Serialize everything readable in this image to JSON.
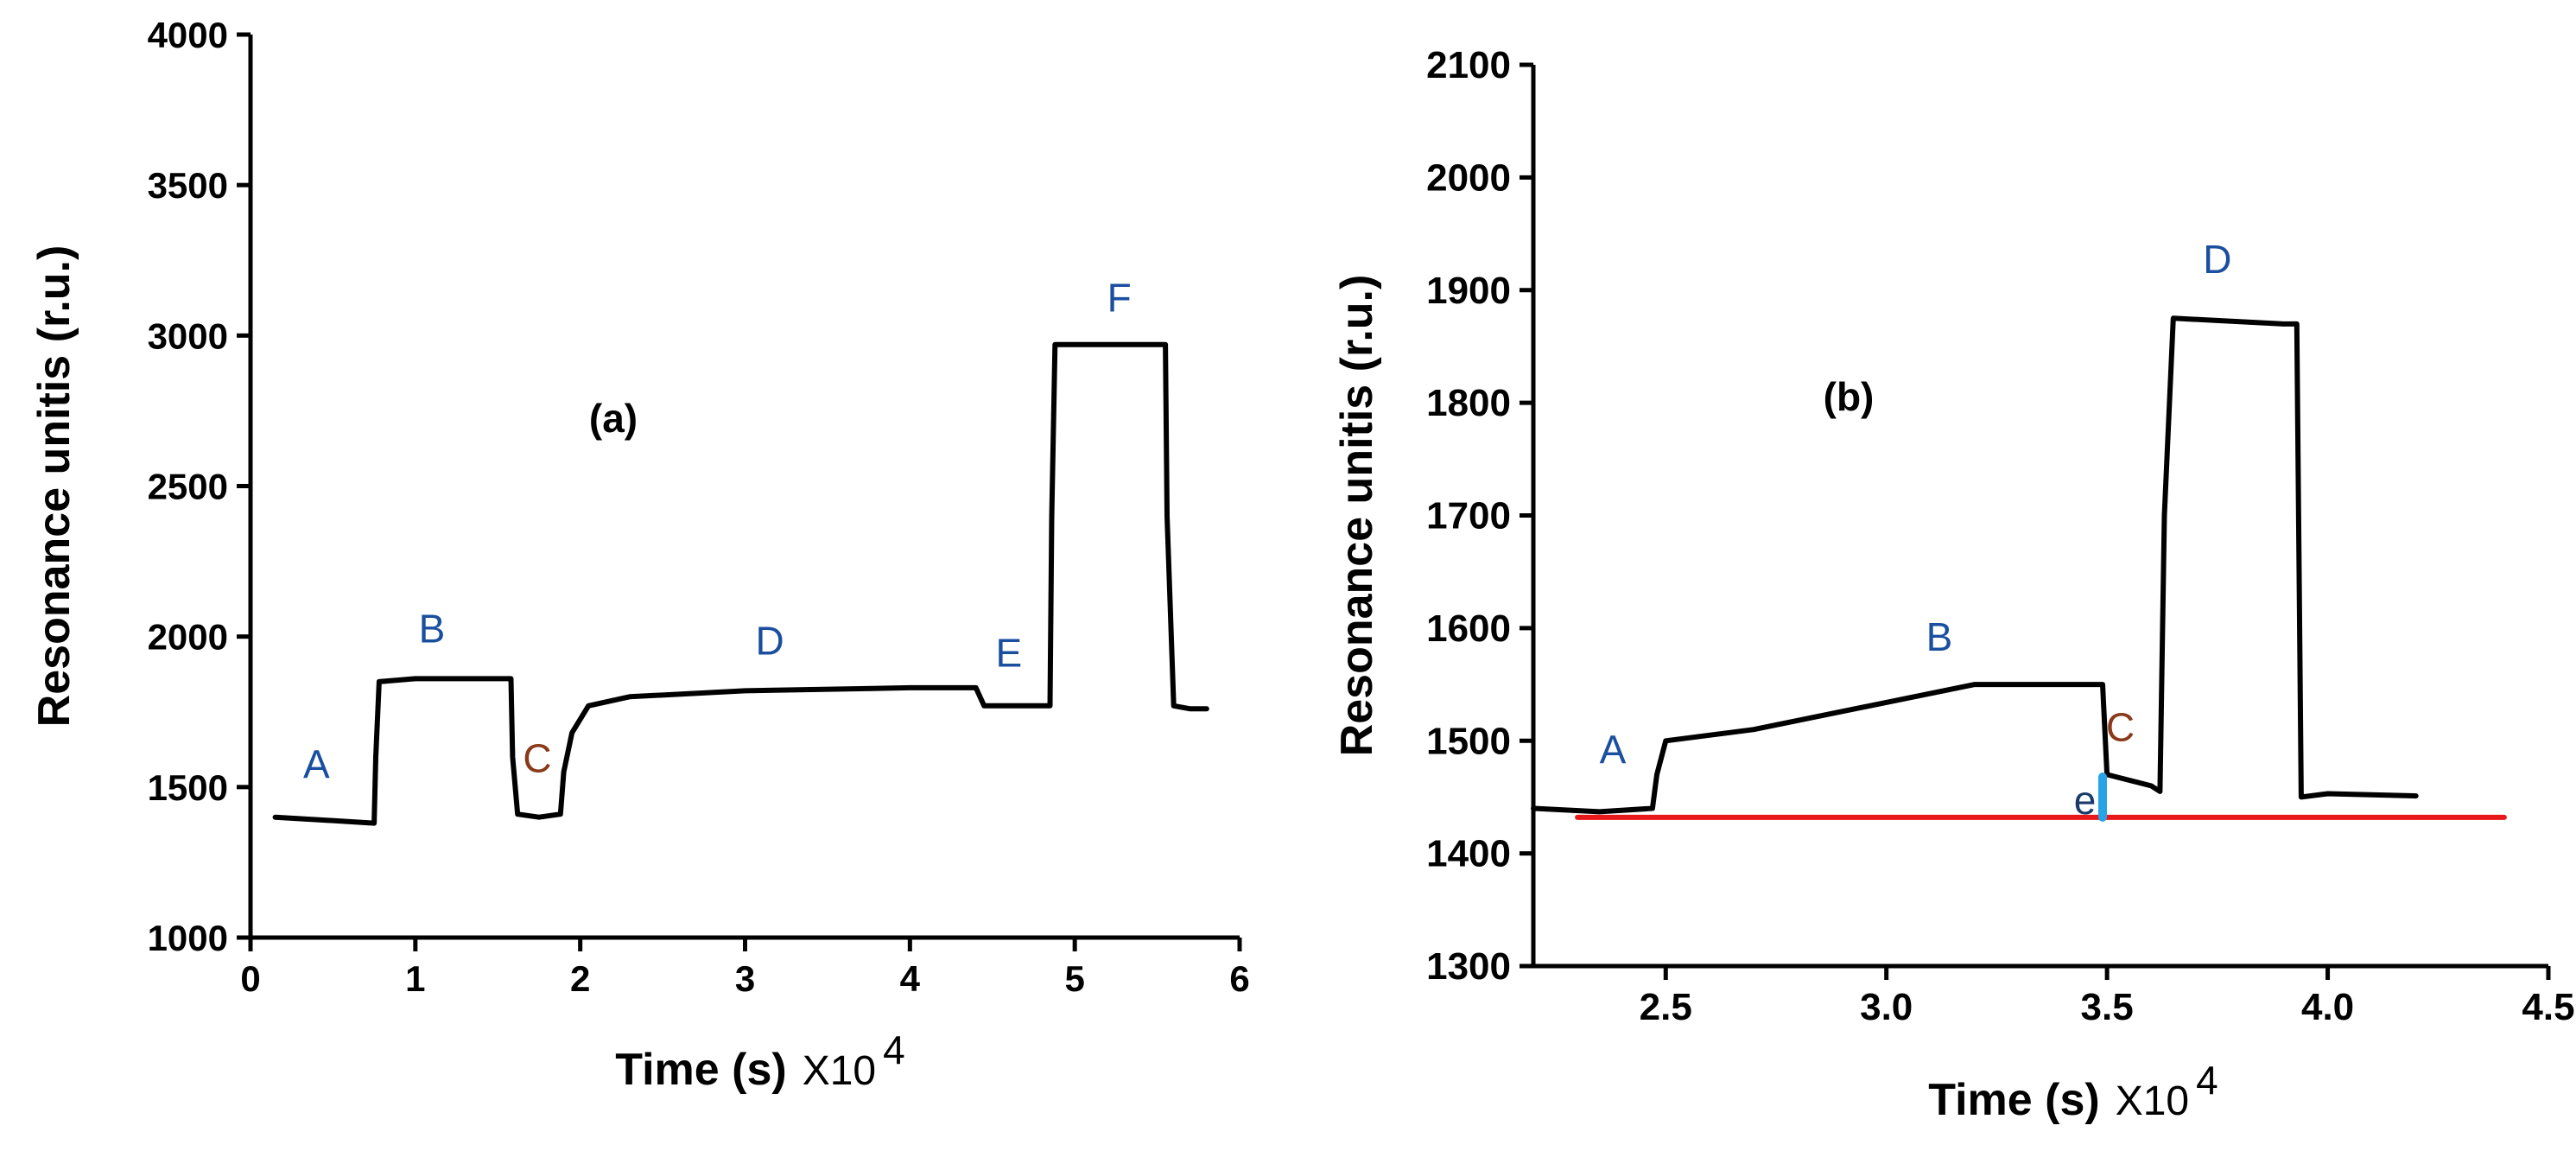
{
  "chart_data": [
    {
      "type": "line",
      "panel_label": "(a)",
      "ylabel": "Resonance unitis (r.u.)",
      "xlabel": "Time (s)",
      "xlabel_multiplier": "X10",
      "xlabel_exponent": "4",
      "xlim": [
        0,
        6
      ],
      "ylim": [
        1000,
        4000
      ],
      "xticks": [
        0,
        1,
        2,
        3,
        4,
        5,
        6
      ],
      "yticks": [
        1000,
        1500,
        2000,
        2500,
        3000,
        3500,
        4000
      ],
      "xtick_labels": [
        "0",
        "1",
        "2",
        "3",
        "4",
        "5",
        "6"
      ],
      "ytick_labels": [
        "1000",
        "1500",
        "2000",
        "2500",
        "3000",
        "3500",
        "4000"
      ],
      "grid": false,
      "series": [
        {
          "color": "#000000",
          "x": [
            0.15,
            0.45,
            0.75,
            0.76,
            0.78,
            1.0,
            1.3,
            1.58,
            1.59,
            1.62,
            1.75,
            1.88,
            1.9,
            1.95,
            2.05,
            2.3,
            3.0,
            4.0,
            4.4,
            4.45,
            4.85,
            4.86,
            4.88,
            5.2,
            5.55,
            5.56,
            5.6,
            5.7,
            5.8
          ],
          "y": [
            1400,
            1390,
            1380,
            1600,
            1850,
            1860,
            1860,
            1860,
            1600,
            1410,
            1400,
            1410,
            1550,
            1680,
            1770,
            1800,
            1820,
            1830,
            1830,
            1770,
            1770,
            2400,
            2970,
            2970,
            2970,
            2400,
            1770,
            1760,
            1760
          ]
        }
      ],
      "annotations": [
        {
          "text": "A",
          "x": 0.4,
          "y": 1530
        },
        {
          "text": "B",
          "x": 1.1,
          "y": 1980
        },
        {
          "text": "C",
          "x": 1.74,
          "y": 1550
        },
        {
          "text": "D",
          "x": 3.15,
          "y": 1940
        },
        {
          "text": "E",
          "x": 4.6,
          "y": 1900
        },
        {
          "text": "F",
          "x": 5.27,
          "y": 3080
        }
      ]
    },
    {
      "type": "line",
      "panel_label": "(b)",
      "ylabel": "Resonance unitis (r.u.)",
      "xlabel": "Time (s)",
      "xlabel_multiplier": "X10",
      "xlabel_exponent": "4",
      "xlim": [
        2.2,
        4.5
      ],
      "ylim": [
        1300,
        2100
      ],
      "xticks": [
        2.5,
        3.0,
        3.5,
        4.0,
        4.5
      ],
      "yticks": [
        1300,
        1400,
        1500,
        1600,
        1700,
        1800,
        1900,
        2000,
        2100
      ],
      "xtick_labels": [
        "2.5",
        "3.0",
        "3.5",
        "4.0",
        "4.5"
      ],
      "ytick_labels": [
        "1300",
        "1400",
        "1500",
        "1600",
        "1700",
        "1800",
        "1900",
        "2000",
        "2100"
      ],
      "grid": false,
      "series": [
        {
          "color": "#000000",
          "x": [
            2.2,
            2.35,
            2.47,
            2.48,
            2.5,
            2.7,
            2.95,
            3.2,
            3.49,
            3.5,
            3.6,
            3.62,
            3.63,
            3.65,
            3.9,
            3.93,
            3.94,
            4.0,
            4.2
          ],
          "y": [
            1440,
            1437,
            1440,
            1470,
            1500,
            1510,
            1530,
            1550,
            1550,
            1470,
            1460,
            1455,
            1700,
            1875,
            1870,
            1870,
            1450,
            1453,
            1451
          ]
        },
        {
          "color": "#e8181a",
          "x": [
            2.3,
            4.4
          ],
          "y": [
            1432,
            1432
          ]
        },
        {
          "color": "#29a3e8",
          "x": [
            3.49,
            3.49
          ],
          "y": [
            1432,
            1468
          ]
        }
      ],
      "annotations": [
        {
          "text": "A",
          "x": 2.38,
          "y": 1480
        },
        {
          "text": "B",
          "x": 3.12,
          "y": 1580
        },
        {
          "text": "C",
          "x": 3.53,
          "y": 1500
        },
        {
          "text": "D",
          "x": 3.75,
          "y": 1915
        },
        {
          "text": "e",
          "x": 3.45,
          "y": 1435
        }
      ]
    }
  ]
}
